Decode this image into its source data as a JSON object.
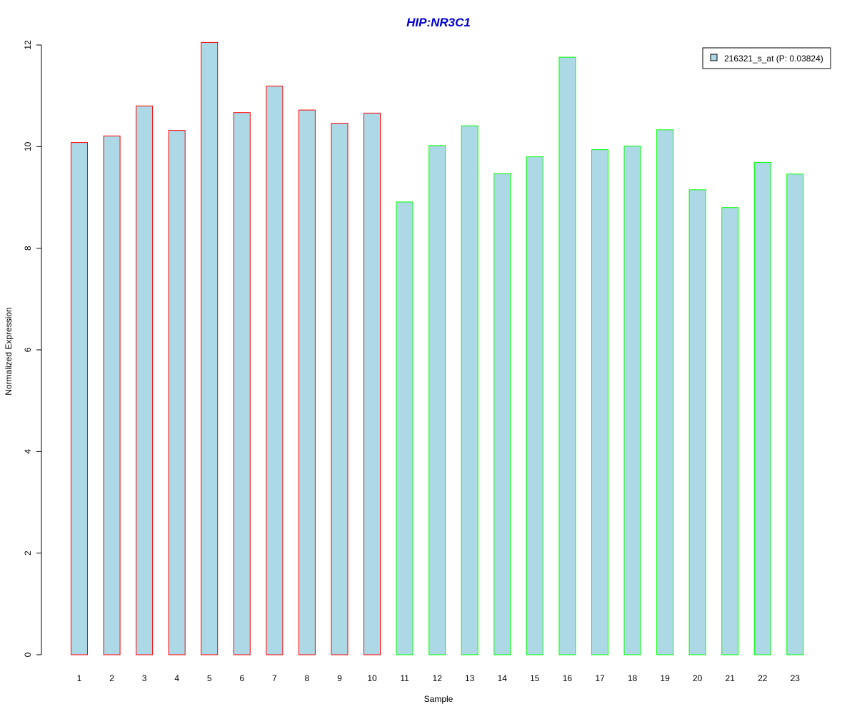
{
  "chart_data": {
    "type": "bar",
    "title": "HIP:NR3C1",
    "xlabel": "Sample",
    "ylabel": "Normalized Expression",
    "ylim": [
      0,
      12
    ],
    "yticks": [
      0,
      2,
      4,
      6,
      8,
      10,
      12
    ],
    "categories": [
      "1",
      "2",
      "3",
      "4",
      "5",
      "6",
      "7",
      "8",
      "9",
      "10",
      "11",
      "12",
      "13",
      "14",
      "15",
      "16",
      "17",
      "18",
      "19",
      "20",
      "21",
      "22",
      "23"
    ],
    "series": [
      {
        "name": "216321_s_at (P: 0.03824)",
        "values": [
          10.08,
          10.21,
          10.8,
          10.32,
          12.05,
          10.67,
          11.19,
          10.72,
          10.46,
          10.66,
          8.91,
          10.02,
          10.41,
          9.47,
          9.8,
          11.76,
          9.94,
          10.01,
          10.33,
          9.15,
          8.8,
          9.69,
          9.46
        ]
      }
    ],
    "groups": [
      {
        "samples": [
          1,
          2,
          3,
          4,
          5,
          6,
          7,
          8,
          9,
          10
        ],
        "border_color": "#ff0000"
      },
      {
        "samples": [
          11,
          12,
          13,
          14,
          15,
          16,
          17,
          18,
          19,
          20,
          21,
          22,
          23
        ],
        "border_color": "#00ff00"
      }
    ],
    "bar_fill": "#add8e6",
    "title_color": "#0000cc",
    "legend_position": "top-right",
    "grid": false
  }
}
